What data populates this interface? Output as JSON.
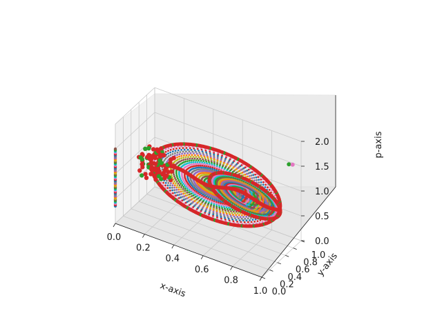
{
  "chart_data": {
    "type": "scatter",
    "projection": "3d",
    "title": "",
    "xlabel": "x-axis",
    "ylabel": "y-axis",
    "zlabel": "p-axis",
    "xlim": [
      0.0,
      1.0
    ],
    "ylim": [
      0.0,
      1.0
    ],
    "zlim": [
      0.0,
      2.0
    ],
    "xticks": [
      "0.0",
      "0.2",
      "0.4",
      "0.6",
      "0.8",
      "1.0"
    ],
    "yticks": [
      "0.0",
      "0.2",
      "0.4",
      "0.6",
      "0.8",
      "1.0"
    ],
    "zticks": [
      "0.0",
      "0.5",
      "1.0",
      "1.5",
      "2.0"
    ],
    "grid": true,
    "legend": "none",
    "colors": [
      "#1f77b4",
      "#ff7f0e",
      "#2ca02c",
      "#d62728",
      "#9467bd",
      "#8c564b",
      "#e377c2",
      "#7f7f7f",
      "#bcbd22",
      "#17becf"
    ],
    "structures": {
      "separatrix_color": "#d62728",
      "left_lobe_center": [
        0.55,
        0.5,
        1.0
      ],
      "right_lobe_center": [
        0.75,
        0.5,
        1.0
      ],
      "vertical_column_x": 0.0,
      "vertical_column_y": 0.0,
      "vertical_column_z": [
        0.35,
        1.5
      ],
      "isolated_points": [
        {
          "x": 0.93,
          "y": 0.95,
          "z": 1.5,
          "color": "#2ca02c"
        },
        {
          "x": 0.95,
          "y": 0.97,
          "z": 1.5,
          "color": "#e377c2"
        }
      ]
    }
  }
}
